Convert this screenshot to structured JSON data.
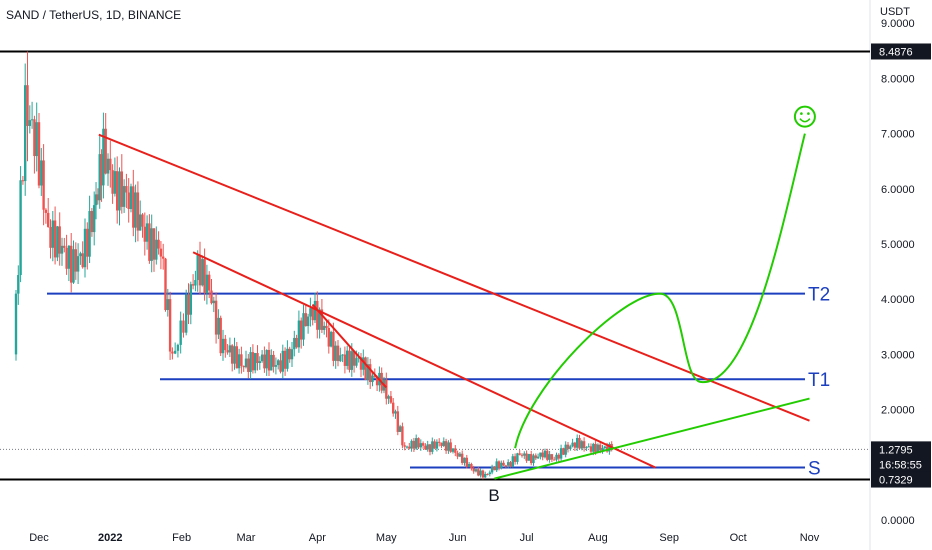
{
  "header": {
    "title": "SAND / TetherUS, 1D, BINANCE",
    "unit": "USDT"
  },
  "chart_data": {
    "type": "line",
    "title": "SAND / TetherUS, 1D, BINANCE",
    "xlabel": "",
    "ylabel": "USDT",
    "y_axis_labels": [
      "0.0000",
      "1.0000",
      "2.0000",
      "3.0000",
      "4.0000",
      "5.0000",
      "6.0000",
      "7.0000",
      "8.0000",
      "9.0000"
    ],
    "x_axis_labels": [
      "Dec",
      "2022",
      "Feb",
      "Mar",
      "Apr",
      "May",
      "Jun",
      "Jul",
      "Aug",
      "Sep",
      "Oct",
      "Nov"
    ],
    "ylim": [
      0,
      9
    ],
    "price_badges": {
      "high": "8.4876",
      "current": "1.2795",
      "countdown": "16:58:55",
      "low": "0.7329"
    },
    "series": [
      {
        "type": "candlestick",
        "x": [
          "2021-11-20",
          "2021-11-25",
          "2021-11-30",
          "2021-12-05",
          "2021-12-10",
          "2021-12-15",
          "2021-12-20",
          "2021-12-25",
          "2021-12-29",
          "2022-01-03",
          "2022-01-08",
          "2022-01-13",
          "2022-01-18",
          "2022-01-23",
          "2022-01-28",
          "2022-02-03",
          "2022-02-08",
          "2022-02-13",
          "2022-02-18",
          "2022-02-23",
          "2022-02-28",
          "2022-03-05",
          "2022-03-10",
          "2022-03-15",
          "2022-03-20",
          "2022-03-25",
          "2022-03-30",
          "2022-04-04",
          "2022-04-09",
          "2022-04-14",
          "2022-04-19",
          "2022-04-24",
          "2022-04-29",
          "2022-05-04",
          "2022-05-09",
          "2022-05-14",
          "2022-05-19",
          "2022-05-24",
          "2022-05-29",
          "2022-06-03",
          "2022-06-08",
          "2022-06-13",
          "2022-06-18",
          "2022-06-23",
          "2022-06-28",
          "2022-07-03",
          "2022-07-08",
          "2022-07-13",
          "2022-07-18",
          "2022-07-23",
          "2022-07-28",
          "2022-08-02",
          "2022-08-07"
        ],
        "values": [
          3.0,
          7.5,
          6.8,
          5.2,
          5.0,
          4.6,
          4.8,
          5.6,
          6.7,
          6.0,
          5.9,
          5.5,
          5.0,
          4.9,
          2.9,
          3.8,
          4.6,
          4.2,
          3.2,
          3.0,
          2.8,
          2.9,
          2.9,
          2.8,
          3.0,
          3.5,
          3.8,
          3.5,
          3.0,
          2.9,
          2.9,
          2.6,
          2.5,
          2.0,
          1.3,
          1.4,
          1.3,
          1.4,
          1.3,
          1.1,
          0.9,
          0.8,
          1.0,
          1.0,
          1.2,
          1.1,
          1.2,
          1.1,
          1.3,
          1.4,
          1.3,
          1.3,
          1.3
        ]
      },
      {
        "name": "",
        "type": "line",
        "x": [
          "2022-06-26",
          "2022-08-28",
          "2022-09-15",
          "2022-10-30"
        ],
        "values": [
          1.3,
          4.1,
          2.5,
          7.0
        ]
      }
    ],
    "horizontal_lines": [
      {
        "value": 8.4876
      },
      {
        "value": 4.1,
        "label": "T2"
      },
      {
        "value": 2.55,
        "label": "T1"
      },
      {
        "value": 0.95,
        "label": "S"
      },
      {
        "value": 0.7329
      }
    ],
    "trend_lines": [
      {
        "from": [
          "2021-12-27",
          6.98
        ],
        "to": [
          "2022-11-01",
          1.8
        ]
      },
      {
        "from": [
          "2022-02-06",
          4.85
        ],
        "to": [
          "2022-08-26",
          0.95
        ]
      },
      {
        "from": [
          "2022-03-30",
          3.9
        ],
        "to": [
          "2022-05-01",
          2.4
        ]
      },
      {
        "from": [
          "2022-06-17",
          0.75
        ],
        "to": [
          "2022-11-01",
          2.2
        ]
      }
    ],
    "annotations": {
      "bottom_label": "B",
      "smiley": "☺"
    },
    "colors": {
      "up": "#26a69a",
      "down": "#ef5350",
      "support_resistance": "#1b3fbf",
      "trend_down": "#e8201c",
      "trend_up": "#22cc00",
      "key_level": "#000000"
    },
    "grid": false
  }
}
